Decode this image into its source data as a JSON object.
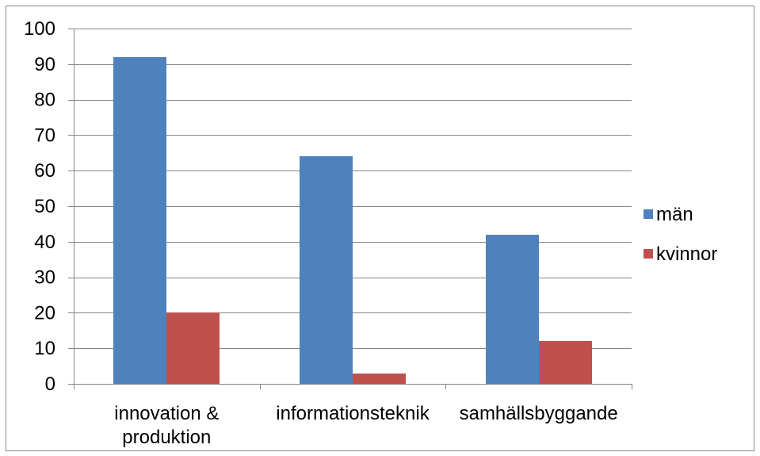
{
  "chart_data": {
    "type": "bar",
    "categories": [
      "innovation & produktion",
      "informationsteknik",
      "samhällsbyggande"
    ],
    "series": [
      {
        "name": "män",
        "color": "#4F81BD",
        "values": [
          92,
          64,
          42
        ]
      },
      {
        "name": "kvinnor",
        "color": "#C0504D",
        "values": [
          20,
          3,
          12
        ]
      }
    ],
    "ylim": [
      0,
      100
    ],
    "yticks": [
      0,
      10,
      20,
      30,
      40,
      50,
      60,
      70,
      80,
      90,
      100
    ],
    "grid": true,
    "legend": "right"
  }
}
